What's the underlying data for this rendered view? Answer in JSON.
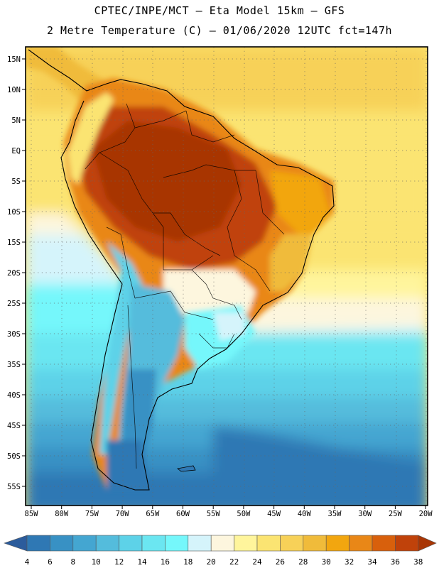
{
  "header": {
    "line1": "CPTEC/INPE/MCT –  Eta Model 15km – GFS",
    "line2": "2 Metre Temperature (C) – 01/06/2020 12UTC fct=147h"
  },
  "map": {
    "lat_labels": [
      "15N",
      "10N",
      "5N",
      "EQ",
      "5S",
      "10S",
      "15S",
      "20S",
      "25S",
      "30S",
      "35S",
      "40S",
      "45S",
      "50S",
      "55S"
    ],
    "lon_labels": [
      "85W",
      "80W",
      "75W",
      "70W",
      "65W",
      "60W",
      "55W",
      "50W",
      "45W",
      "40W",
      "35W",
      "30W",
      "25W",
      "20W"
    ],
    "lon_range": [
      -86,
      -20
    ],
    "lat_range": [
      -58,
      16.5
    ]
  },
  "colorbar": {
    "labels": [
      "4",
      "6",
      "8",
      "10",
      "12",
      "14",
      "16",
      "18",
      "20",
      "22",
      "24",
      "26",
      "28",
      "30",
      "32",
      "34",
      "36",
      "38"
    ],
    "colors": [
      "#2c5c9c",
      "#2f78b4",
      "#3891c4",
      "#44a6d1",
      "#54bcdc",
      "#5dd2e8",
      "#6be6f1",
      "#75f7fb",
      "#d5f4fb",
      "#fdf6de",
      "#fff59c",
      "#fbe472",
      "#f7d158",
      "#f0bb3a",
      "#f2a60f",
      "#e98717",
      "#d8600c",
      "#c0420a",
      "#a83605"
    ]
  }
}
